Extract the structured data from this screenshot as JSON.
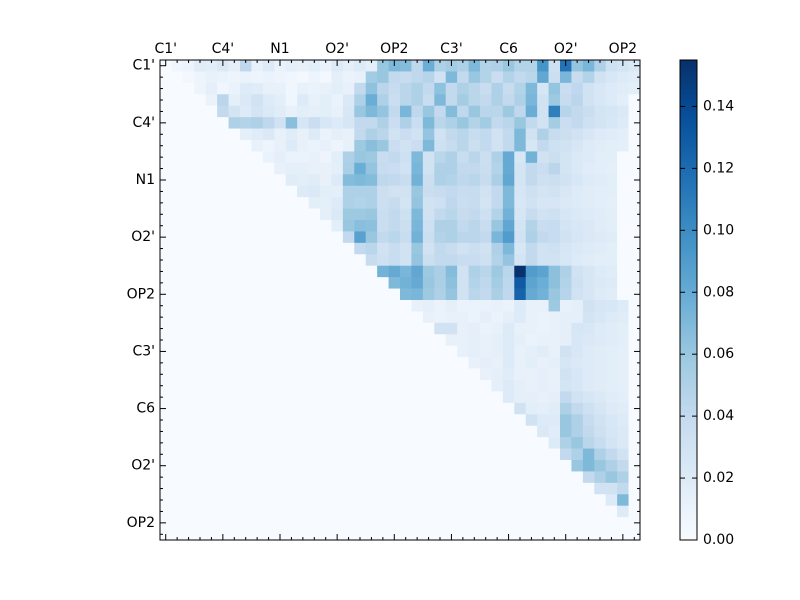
{
  "chart_data": {
    "type": "heatmap",
    "title": "",
    "xlabel": "",
    "ylabel": "",
    "n": 42,
    "x_tick_labels": [
      "C1'",
      "C4'",
      "N1",
      "O2'",
      "OP2",
      "C3'",
      "C6",
      "O2'",
      "OP2"
    ],
    "y_tick_labels": [
      "C1'",
      "C4'",
      "N1",
      "O2'",
      "OP2",
      "C3'",
      "C6",
      "O2'",
      "OP2"
    ],
    "x_label_positions": [
      0,
      5,
      10,
      15,
      20,
      25,
      30,
      35,
      40
    ],
    "y_label_positions": [
      0,
      5,
      10,
      15,
      20,
      25,
      30,
      35,
      40
    ],
    "colorbar": {
      "min": 0.0,
      "max": 0.155,
      "tick_values": [
        0.0,
        0.02,
        0.04,
        0.06,
        0.08,
        0.1,
        0.12,
        0.14
      ],
      "tick_labels": [
        "0.00",
        "0.02",
        "0.04",
        "0.06",
        "0.08",
        "0.10",
        "0.12",
        "0.14"
      ],
      "colormap": "Blues",
      "stops": [
        "#f7fbff",
        "#deebf7",
        "#c6dbef",
        "#9ecae1",
        "#6baed6",
        "#4292c6",
        "#2171b5",
        "#08519c",
        "#08306b"
      ]
    },
    "matrix_encoding": "upper-triangular; row i lists values for columns i+1..41",
    "upper_triangle_rows": [
      [
        0.006,
        0.008,
        0.018,
        0.016,
        0.022,
        0.014,
        0.042,
        0.012,
        0.02,
        0.01,
        0.014,
        0.012,
        0.016,
        0.01,
        0.02,
        0.014,
        0.02,
        0.014,
        0.06,
        0.07,
        0.068,
        0.042,
        0.078,
        0.05,
        0.055,
        0.05,
        0.07,
        0.048,
        0.05,
        0.06,
        0.048,
        0.048,
        0.095,
        0.032,
        0.115,
        0.062,
        0.072,
        0.05,
        0.032,
        0.028,
        0.022
      ],
      [
        0.004,
        0.008,
        0.012,
        0.01,
        0.008,
        0.01,
        0.008,
        0.01,
        0.008,
        0.006,
        0.004,
        0.008,
        0.004,
        0.014,
        0.01,
        0.012,
        0.056,
        0.06,
        0.04,
        0.038,
        0.042,
        0.046,
        0.03,
        0.07,
        0.04,
        0.06,
        0.048,
        0.035,
        0.048,
        0.04,
        0.045,
        0.082,
        0.034,
        0.072,
        0.038,
        0.048,
        0.03,
        0.024,
        0.02,
        0.018
      ],
      [
        0.008,
        0.014,
        0.006,
        0.01,
        0.02,
        0.018,
        0.012,
        0.012,
        0.006,
        0.012,
        0.01,
        0.012,
        0.016,
        0.012,
        0.04,
        0.064,
        0.044,
        0.038,
        0.044,
        0.05,
        0.04,
        0.064,
        0.04,
        0.05,
        0.044,
        0.036,
        0.05,
        0.038,
        0.048,
        0.07,
        0.026,
        0.062,
        0.035,
        0.042,
        0.03,
        0.024,
        0.02,
        0.018,
        0.016
      ],
      [
        0.01,
        0.044,
        0.014,
        0.022,
        0.03,
        0.02,
        0.016,
        0.006,
        0.02,
        0.012,
        0.016,
        0.01,
        0.022,
        0.05,
        0.078,
        0.05,
        0.035,
        0.045,
        0.05,
        0.036,
        0.07,
        0.04,
        0.055,
        0.045,
        0.04,
        0.05,
        0.04,
        0.05,
        0.072,
        0.03,
        0.058,
        0.038,
        0.044,
        0.03,
        0.024,
        0.02,
        0.016
      ],
      [
        0.04,
        0.028,
        0.02,
        0.028,
        0.022,
        0.018,
        0.012,
        0.016,
        0.014,
        0.016,
        0.012,
        0.024,
        0.06,
        0.07,
        0.062,
        0.04,
        0.072,
        0.042,
        0.06,
        0.04,
        0.068,
        0.042,
        0.06,
        0.045,
        0.045,
        0.058,
        0.042,
        0.078,
        0.03,
        0.108,
        0.046,
        0.04,
        0.035,
        0.028,
        0.026,
        0.022
      ],
      [
        0.05,
        0.048,
        0.05,
        0.042,
        0.03,
        0.066,
        0.026,
        0.035,
        0.024,
        0.02,
        0.026,
        0.04,
        0.04,
        0.05,
        0.035,
        0.05,
        0.035,
        0.07,
        0.045,
        0.05,
        0.06,
        0.048,
        0.056,
        0.04,
        0.045,
        0.06,
        0.04,
        0.03,
        0.055,
        0.035,
        0.04,
        0.032,
        0.028,
        0.024,
        0.02
      ],
      [
        0.014,
        0.018,
        0.022,
        0.012,
        0.018,
        0.012,
        0.02,
        0.01,
        0.014,
        0.012,
        0.04,
        0.05,
        0.044,
        0.03,
        0.035,
        0.03,
        0.062,
        0.03,
        0.04,
        0.045,
        0.036,
        0.04,
        0.03,
        0.04,
        0.07,
        0.03,
        0.05,
        0.038,
        0.034,
        0.03,
        0.024,
        0.02,
        0.018,
        0.016
      ],
      [
        0.012,
        0.008,
        0.012,
        0.02,
        0.012,
        0.01,
        0.012,
        0.008,
        0.012,
        0.058,
        0.066,
        0.06,
        0.035,
        0.03,
        0.035,
        0.07,
        0.032,
        0.038,
        0.045,
        0.034,
        0.04,
        0.03,
        0.04,
        0.07,
        0.026,
        0.04,
        0.032,
        0.03,
        0.026,
        0.02,
        0.018,
        0.016,
        0.014
      ],
      [
        0.01,
        0.014,
        0.01,
        0.01,
        0.012,
        0.008,
        0.016,
        0.05,
        0.06,
        0.058,
        0.036,
        0.04,
        0.032,
        0.07,
        0.03,
        0.045,
        0.05,
        0.036,
        0.044,
        0.034,
        0.05,
        0.08,
        0.024,
        0.075,
        0.03,
        0.034,
        0.028,
        0.022,
        0.02,
        0.016,
        0.016
      ],
      [
        0.012,
        0.014,
        0.014,
        0.012,
        0.012,
        0.014,
        0.052,
        0.078,
        0.062,
        0.038,
        0.035,
        0.03,
        0.072,
        0.03,
        0.05,
        0.05,
        0.04,
        0.04,
        0.035,
        0.048,
        0.08,
        0.028,
        0.04,
        0.035,
        0.044,
        0.028,
        0.022,
        0.018,
        0.016,
        0.014
      ],
      [
        0.018,
        0.016,
        0.018,
        0.012,
        0.02,
        0.068,
        0.07,
        0.068,
        0.042,
        0.04,
        0.036,
        0.075,
        0.034,
        0.05,
        0.048,
        0.042,
        0.045,
        0.038,
        0.052,
        0.082,
        0.028,
        0.04,
        0.032,
        0.034,
        0.03,
        0.024,
        0.02,
        0.018,
        0.016
      ],
      [
        0.02,
        0.022,
        0.016,
        0.014,
        0.05,
        0.05,
        0.05,
        0.034,
        0.03,
        0.03,
        0.06,
        0.035,
        0.038,
        0.04,
        0.036,
        0.038,
        0.03,
        0.04,
        0.07,
        0.026,
        0.032,
        0.028,
        0.03,
        0.024,
        0.02,
        0.018,
        0.016,
        0.016
      ],
      [
        0.016,
        0.014,
        0.02,
        0.05,
        0.048,
        0.05,
        0.034,
        0.038,
        0.028,
        0.062,
        0.03,
        0.032,
        0.042,
        0.035,
        0.038,
        0.028,
        0.04,
        0.07,
        0.024,
        0.03,
        0.026,
        0.026,
        0.022,
        0.02,
        0.018,
        0.016,
        0.014
      ],
      [
        0.014,
        0.022,
        0.058,
        0.058,
        0.06,
        0.035,
        0.04,
        0.032,
        0.07,
        0.03,
        0.04,
        0.045,
        0.038,
        0.04,
        0.032,
        0.048,
        0.075,
        0.026,
        0.038,
        0.03,
        0.032,
        0.026,
        0.022,
        0.02,
        0.018,
        0.016
      ],
      [
        0.016,
        0.06,
        0.066,
        0.065,
        0.035,
        0.04,
        0.034,
        0.072,
        0.032,
        0.05,
        0.05,
        0.04,
        0.044,
        0.036,
        0.06,
        0.082,
        0.028,
        0.048,
        0.036,
        0.038,
        0.028,
        0.024,
        0.022,
        0.018,
        0.016
      ],
      [
        0.04,
        0.086,
        0.06,
        0.04,
        0.045,
        0.036,
        0.075,
        0.034,
        0.048,
        0.05,
        0.044,
        0.044,
        0.04,
        0.072,
        0.09,
        0.03,
        0.05,
        0.04,
        0.038,
        0.03,
        0.026,
        0.022,
        0.02,
        0.018
      ],
      [
        0.04,
        0.045,
        0.03,
        0.036,
        0.03,
        0.06,
        0.03,
        0.04,
        0.036,
        0.03,
        0.034,
        0.03,
        0.05,
        0.07,
        0.024,
        0.04,
        0.03,
        0.032,
        0.026,
        0.022,
        0.02,
        0.018,
        0.016
      ],
      [
        0.038,
        0.032,
        0.036,
        0.03,
        0.062,
        0.034,
        0.04,
        0.04,
        0.036,
        0.036,
        0.032,
        0.048,
        0.062,
        0.028,
        0.04,
        0.03,
        0.03,
        0.024,
        0.02,
        0.018,
        0.016,
        0.016
      ],
      [
        0.074,
        0.08,
        0.072,
        0.082,
        0.058,
        0.052,
        0.068,
        0.03,
        0.05,
        0.045,
        0.058,
        0.045,
        0.154,
        0.09,
        0.085,
        0.065,
        0.05,
        0.03,
        0.025,
        0.02,
        0.018
      ],
      [
        0.07,
        0.075,
        0.08,
        0.06,
        0.052,
        0.065,
        0.03,
        0.048,
        0.042,
        0.055,
        0.043,
        0.13,
        0.084,
        0.078,
        0.065,
        0.048,
        0.032,
        0.026,
        0.022,
        0.02
      ],
      [
        0.07,
        0.072,
        0.058,
        0.05,
        0.062,
        0.03,
        0.045,
        0.04,
        0.052,
        0.042,
        0.125,
        0.08,
        0.075,
        0.06,
        0.046,
        0.03,
        0.025,
        0.02,
        0.018
      ],
      [
        0.012,
        0.014,
        0.01,
        0.014,
        0.01,
        0.01,
        0.01,
        0.012,
        0.01,
        0.02,
        0.012,
        0.012,
        0.058,
        0.012,
        0.014,
        0.03,
        0.026,
        0.024,
        0.02
      ],
      [
        0.012,
        0.01,
        0.012,
        0.012,
        0.01,
        0.014,
        0.01,
        0.014,
        0.02,
        0.012,
        0.01,
        0.012,
        0.014,
        0.014,
        0.028,
        0.024,
        0.02,
        0.018
      ],
      [
        0.03,
        0.03,
        0.012,
        0.014,
        0.01,
        0.012,
        0.02,
        0.012,
        0.012,
        0.01,
        0.012,
        0.014,
        0.026,
        0.024,
        0.02,
        0.018,
        0.016
      ],
      [
        0.012,
        0.012,
        0.014,
        0.012,
        0.014,
        0.02,
        0.014,
        0.01,
        0.012,
        0.012,
        0.014,
        0.024,
        0.022,
        0.02,
        0.018,
        0.016
      ],
      [
        0.012,
        0.014,
        0.012,
        0.014,
        0.02,
        0.012,
        0.014,
        0.018,
        0.012,
        0.03,
        0.024,
        0.02,
        0.018,
        0.016,
        0.014
      ],
      [
        0.012,
        0.014,
        0.012,
        0.02,
        0.012,
        0.016,
        0.012,
        0.014,
        0.026,
        0.022,
        0.02,
        0.018,
        0.016,
        0.014
      ],
      [
        0.012,
        0.014,
        0.018,
        0.012,
        0.012,
        0.014,
        0.012,
        0.03,
        0.024,
        0.02,
        0.018,
        0.016,
        0.014
      ],
      [
        0.014,
        0.02,
        0.014,
        0.012,
        0.014,
        0.012,
        0.028,
        0.024,
        0.02,
        0.018,
        0.016,
        0.014
      ],
      [
        0.02,
        0.014,
        0.014,
        0.012,
        0.014,
        0.04,
        0.03,
        0.026,
        0.022,
        0.018,
        0.016
      ],
      [
        0.03,
        0.016,
        0.014,
        0.018,
        0.05,
        0.04,
        0.032,
        0.026,
        0.02,
        0.018
      ],
      [
        0.03,
        0.02,
        0.02,
        0.06,
        0.05,
        0.038,
        0.03,
        0.024,
        0.02
      ],
      [
        0.022,
        0.018,
        0.06,
        0.05,
        0.04,
        0.032,
        0.026,
        0.022
      ],
      [
        0.02,
        0.05,
        0.06,
        0.045,
        0.036,
        0.028,
        0.022
      ],
      [
        0.04,
        0.05,
        0.07,
        0.05,
        0.04,
        0.03
      ],
      [
        0.06,
        0.07,
        0.06,
        0.05,
        0.04
      ],
      [
        0.04,
        0.05,
        0.06,
        0.05
      ],
      [
        0.03,
        0.03,
        0.04
      ],
      [
        0.02,
        0.07
      ],
      [
        0.02
      ]
    ]
  }
}
